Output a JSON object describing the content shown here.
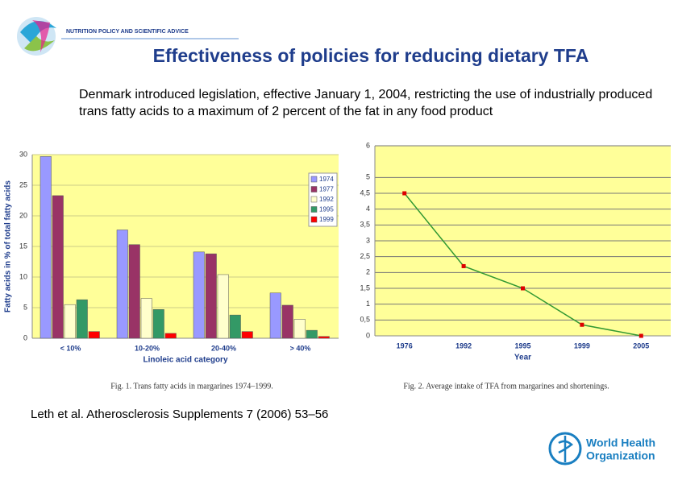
{
  "header": {
    "banner": "NUTRITION POLICY AND SCIENTIFIC ADVICE",
    "title": "Effectiveness of policies for reducing dietary TFA"
  },
  "body": "Denmark introduced legislation, effective January 1, 2004, restricting the use of industrially produced trans fatty acids to a maximum of 2 percent of the fat in any food product",
  "citation": "Leth et al. Atherosclerosis Supplements 7 (2006) 53–56",
  "logo": {
    "line1": "World Health",
    "line2": "Organization"
  },
  "chart_data": [
    {
      "type": "bar",
      "ylabel": "Fatty acids in % of total fatty acids",
      "xlabel": "Linoleic acid category",
      "caption": "Fig. 1. Trans fatty acids in margarines 1974–1999.",
      "categories": [
        "< 10%",
        "10-20%",
        "20-40%",
        "> 40%"
      ],
      "series": [
        {
          "name": "1974",
          "color": "#9999ff",
          "values": [
            29.7,
            17.7,
            14.1,
            7.4
          ]
        },
        {
          "name": "1977",
          "color": "#993366",
          "values": [
            23.3,
            15.3,
            13.8,
            5.4
          ]
        },
        {
          "name": "1992",
          "color": "#ffffcc",
          "values": [
            5.5,
            6.5,
            10.4,
            3.1
          ]
        },
        {
          "name": "1995",
          "color": "#339966",
          "values": [
            6.3,
            4.7,
            3.8,
            1.3
          ]
        },
        {
          "name": "1999",
          "color": "#ff0000",
          "values": [
            1.1,
            0.8,
            1.1,
            0.3
          ]
        }
      ],
      "ylim": [
        0,
        30
      ],
      "yticks": [
        0,
        5,
        10,
        15,
        20,
        25,
        30
      ],
      "grid": true,
      "legend": "top-right"
    },
    {
      "type": "line",
      "xlabel": "Year",
      "caption": "Fig. 2. Average intake of TFA from margarines and shortenings.",
      "categories": [
        "1976",
        "1992",
        "1995",
        "1999",
        "2005"
      ],
      "values": [
        4.5,
        2.2,
        1.5,
        0.35,
        0
      ],
      "color": "#339933",
      "marker_color": "#dd0000",
      "ylim": [
        0,
        6
      ],
      "yticks": [
        0,
        {
          "value": 0.5,
          "label": "0,5"
        },
        1,
        {
          "value": 1.5,
          "label": "1,5"
        },
        2,
        {
          "value": 2.5,
          "label": "2,5"
        },
        3,
        {
          "value": 3.5,
          "label": "3,5"
        },
        4,
        {
          "value": 4.5,
          "label": "4,5"
        },
        5,
        6
      ],
      "grid": true
    }
  ]
}
